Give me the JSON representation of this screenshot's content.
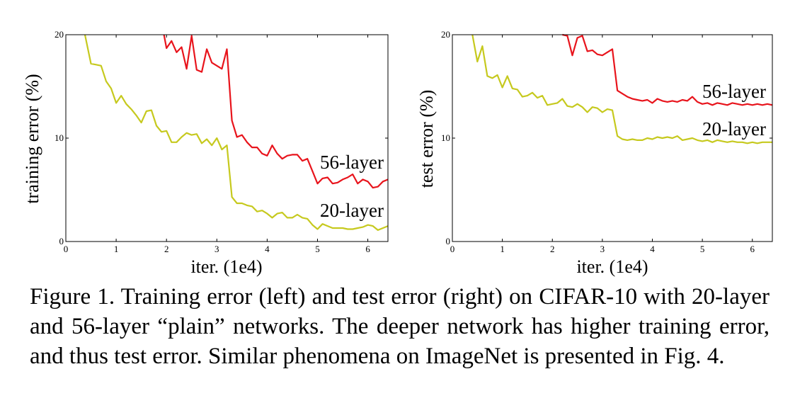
{
  "chart_data": [
    {
      "type": "line",
      "ylabel": "training error (%)",
      "xlabel": "iter. (1e4)",
      "xlim": [
        0,
        6.4
      ],
      "ylim": [
        0,
        20
      ],
      "xticks": [
        "0",
        "1",
        "2",
        "3",
        "4",
        "5",
        "6"
      ],
      "yticks": [
        "0",
        "10",
        "20"
      ],
      "series": [
        {
          "name": "56-layer",
          "color": "#e8141c",
          "x": [
            1.95,
            2.0,
            2.1,
            2.2,
            2.3,
            2.4,
            2.5,
            2.6,
            2.7,
            2.8,
            2.9,
            3.0,
            3.1,
            3.2,
            3.3,
            3.4,
            3.5,
            3.6,
            3.7,
            3.8,
            3.9,
            4.0,
            4.1,
            4.2,
            4.3,
            4.4,
            4.5,
            4.6,
            4.7,
            4.8,
            4.9,
            5.0,
            5.1,
            5.2,
            5.3,
            5.4,
            5.5,
            5.6,
            5.7,
            5.8,
            5.9,
            6.0,
            6.1,
            6.2,
            6.3,
            6.4
          ],
          "y": [
            20,
            18.7,
            19.4,
            18.3,
            18.8,
            16.7,
            19.9,
            16.6,
            16.4,
            18.6,
            17.3,
            17.0,
            16.7,
            18.6,
            11.7,
            10.1,
            10.3,
            9.6,
            9.1,
            9.1,
            8.5,
            8.3,
            9.3,
            8.5,
            8.0,
            8.3,
            8.4,
            8.4,
            7.8,
            8.0,
            6.8,
            5.6,
            6.1,
            6.2,
            5.6,
            5.7,
            6.0,
            6.2,
            6.5,
            5.6,
            6.0,
            5.8,
            5.2,
            5.3,
            5.8,
            6.0
          ]
        },
        {
          "name": "20-layer",
          "color": "#c6c91e",
          "x": [
            0.38,
            0.5,
            0.6,
            0.7,
            0.8,
            0.9,
            1.0,
            1.1,
            1.2,
            1.3,
            1.4,
            1.5,
            1.6,
            1.7,
            1.8,
            1.9,
            2.0,
            2.1,
            2.2,
            2.3,
            2.4,
            2.5,
            2.6,
            2.7,
            2.8,
            2.9,
            3.0,
            3.1,
            3.2,
            3.3,
            3.4,
            3.5,
            3.6,
            3.7,
            3.8,
            3.9,
            4.0,
            4.1,
            4.2,
            4.3,
            4.4,
            4.5,
            4.6,
            4.7,
            4.8,
            4.9,
            5.0,
            5.1,
            5.2,
            5.3,
            5.4,
            5.5,
            5.6,
            5.7,
            5.8,
            5.9,
            6.0,
            6.1,
            6.2,
            6.3,
            6.4
          ],
          "y": [
            20,
            17.2,
            17.1,
            17.0,
            15.5,
            14.8,
            13.4,
            14.1,
            13.3,
            12.8,
            12.2,
            11.5,
            12.6,
            12.7,
            11.2,
            10.6,
            10.7,
            9.6,
            9.6,
            10.1,
            10.5,
            10.3,
            10.4,
            9.5,
            9.9,
            9.3,
            10.0,
            8.9,
            9.3,
            4.3,
            3.7,
            3.7,
            3.5,
            3.4,
            2.9,
            3.0,
            2.7,
            2.3,
            2.7,
            2.8,
            2.3,
            2.3,
            2.6,
            2.3,
            2.2,
            1.6,
            1.2,
            1.7,
            1.5,
            1.3,
            1.3,
            1.3,
            1.2,
            1.2,
            1.3,
            1.4,
            1.6,
            1.5,
            1.1,
            1.3,
            1.5
          ]
        }
      ]
    },
    {
      "type": "line",
      "ylabel": "test error (%)",
      "xlabel": "iter. (1e4)",
      "xlim": [
        0,
        6.4
      ],
      "ylim": [
        0,
        20
      ],
      "xticks": [
        "0",
        "1",
        "2",
        "3",
        "4",
        "5",
        "6"
      ],
      "yticks": [
        "0",
        "10",
        "20"
      ],
      "series": [
        {
          "name": "56-layer",
          "color": "#e8141c",
          "x": [
            2.2,
            2.3,
            2.4,
            2.5,
            2.6,
            2.7,
            2.8,
            2.9,
            3.0,
            3.1,
            3.2,
            3.3,
            3.4,
            3.5,
            3.6,
            3.7,
            3.8,
            3.9,
            4.0,
            4.1,
            4.2,
            4.3,
            4.4,
            4.5,
            4.6,
            4.7,
            4.8,
            4.9,
            5.0,
            5.1,
            5.2,
            5.3,
            5.4,
            5.5,
            5.6,
            5.7,
            5.8,
            5.9,
            6.0,
            6.1,
            6.2,
            6.3,
            6.4
          ],
          "y": [
            20,
            19.9,
            18.0,
            19.7,
            19.9,
            18.4,
            18.5,
            18.1,
            18.0,
            18.3,
            18.6,
            14.6,
            14.3,
            14.0,
            13.8,
            13.7,
            13.6,
            13.7,
            13.4,
            13.8,
            13.6,
            13.5,
            13.6,
            13.5,
            13.7,
            13.6,
            14.0,
            13.5,
            13.3,
            13.4,
            13.2,
            13.4,
            13.3,
            13.2,
            13.4,
            13.3,
            13.2,
            13.3,
            13.2,
            13.3,
            13.2,
            13.3,
            13.2
          ]
        },
        {
          "name": "20-layer",
          "color": "#c6c91e",
          "x": [
            0.4,
            0.5,
            0.6,
            0.7,
            0.8,
            0.9,
            1.0,
            1.1,
            1.2,
            1.3,
            1.4,
            1.5,
            1.6,
            1.7,
            1.8,
            1.9,
            2.0,
            2.1,
            2.2,
            2.3,
            2.4,
            2.5,
            2.6,
            2.7,
            2.8,
            2.9,
            3.0,
            3.1,
            3.2,
            3.3,
            3.4,
            3.5,
            3.6,
            3.7,
            3.8,
            3.9,
            4.0,
            4.1,
            4.2,
            4.3,
            4.4,
            4.5,
            4.6,
            4.7,
            4.8,
            4.9,
            5.0,
            5.1,
            5.2,
            5.3,
            5.4,
            5.5,
            5.6,
            5.7,
            5.8,
            5.9,
            6.0,
            6.1,
            6.2,
            6.3,
            6.4
          ],
          "y": [
            20,
            17.4,
            18.9,
            16.0,
            15.8,
            16.1,
            14.9,
            16.0,
            14.8,
            14.7,
            14.0,
            14.1,
            14.4,
            13.9,
            14.1,
            13.2,
            13.3,
            13.4,
            13.8,
            13.1,
            13.0,
            13.3,
            13.0,
            12.5,
            13.0,
            12.9,
            12.5,
            12.8,
            12.7,
            10.2,
            9.9,
            9.8,
            9.9,
            9.8,
            9.8,
            10.0,
            9.9,
            10.1,
            10.0,
            10.1,
            10.0,
            10.2,
            9.8,
            9.9,
            10.0,
            9.8,
            9.7,
            9.8,
            9.6,
            9.8,
            9.7,
            9.6,
            9.7,
            9.6,
            9.6,
            9.5,
            9.6,
            9.5,
            9.6,
            9.6,
            9.6
          ]
        }
      ]
    }
  ],
  "caption": "Figure 1. Training error (left) and test error (right) on CIFAR-10 with 20-layer and 56-layer “plain” networks. The deeper network has higher training error, and thus test error. Similar phenomena on ImageNet is presented in Fig. 4."
}
